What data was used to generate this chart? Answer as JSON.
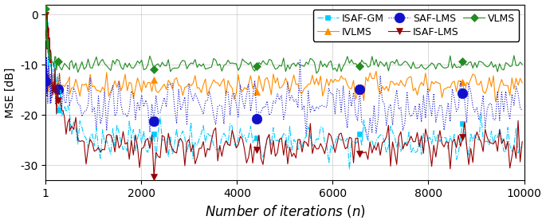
{
  "title": "",
  "xlabel": "Number of iterations $(n)$",
  "ylabel": "MSE [dB]",
  "xlim": [
    1,
    10000
  ],
  "ylim": [
    -33,
    2
  ],
  "yticks": [
    0,
    -10,
    -20,
    -30
  ],
  "xticks": [
    1,
    2000,
    4000,
    6000,
    8000,
    10000
  ],
  "xtick_labels": [
    "1",
    "2000",
    "4000",
    "6000",
    "8000",
    "10000"
  ],
  "series": {
    "ISAF-GM": {
      "color": "#00CCFF",
      "linestyle": "-.",
      "marker": "s",
      "markersize": 5,
      "markevery": 50,
      "final_level": -25,
      "start": 0,
      "convergence": 1200,
      "noise": 1.8,
      "zorder": 4
    },
    "IVLMS": {
      "color": "#FF8C00",
      "linestyle": "-",
      "marker": "^",
      "markersize": 6,
      "markevery": 50,
      "final_level": -14,
      "start": -13,
      "convergence": 400,
      "noise": 1.2,
      "zorder": 3
    },
    "SAF-LMS": {
      "color": "#1111CC",
      "linestyle": ":",
      "marker": "o",
      "markersize": 9,
      "markevery": 50,
      "final_level": -18,
      "start": -13,
      "convergence": 1800,
      "noise": 2.5,
      "zorder": 3
    },
    "ISAF-LMS": {
      "color": "#990000",
      "linestyle": "-",
      "marker": "v",
      "markersize": 6,
      "markevery": 50,
      "final_level": -26,
      "start": 0,
      "convergence": 1200,
      "noise": 2.0,
      "zorder": 4
    },
    "VLMS": {
      "color": "#228B22",
      "linestyle": "-",
      "marker": "D",
      "markersize": 5,
      "markevery": 50,
      "final_level": -10,
      "start": 0,
      "convergence": 250,
      "noise": 0.8,
      "zorder": 5
    }
  },
  "legend_order": [
    "ISAF-GM",
    "IVLMS",
    "SAF-LMS",
    "ISAF-LMS",
    "VLMS"
  ],
  "figsize": [
    6.85,
    2.81
  ],
  "dpi": 100,
  "n_display": 300,
  "n_total": 10000
}
